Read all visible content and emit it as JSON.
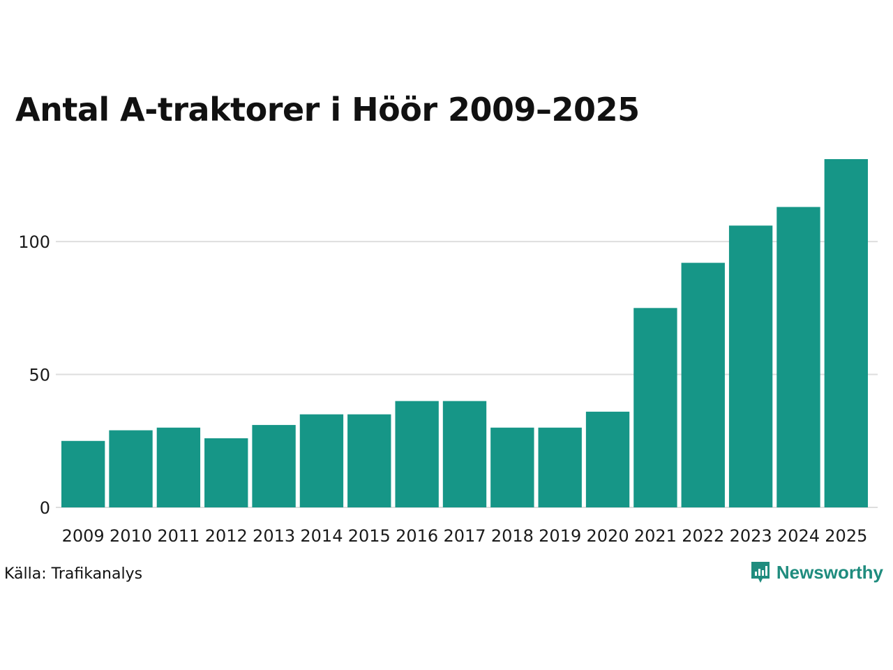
{
  "chart_data": {
    "type": "bar",
    "title": "Antal A-traktorer i Höör 2009–2025",
    "categories": [
      "2009",
      "2010",
      "2011",
      "2012",
      "2013",
      "2014",
      "2015",
      "2016",
      "2017",
      "2018",
      "2019",
      "2020",
      "2021",
      "2022",
      "2023",
      "2024",
      "2025"
    ],
    "values": [
      25,
      29,
      30,
      26,
      31,
      35,
      35,
      40,
      40,
      30,
      30,
      36,
      75,
      92,
      106,
      113,
      131
    ],
    "yticks": [
      0,
      50,
      100
    ],
    "ylim": [
      0,
      131
    ],
    "xlabel": "",
    "ylabel": "",
    "grid": true,
    "bar_color": "#169687",
    "grid_color": "#dedede"
  },
  "source": "Källa: Trafikanalys",
  "brand": {
    "name": "Newsworthy",
    "icon": "newsworthy-logo-icon",
    "color": "#1f8c7e"
  }
}
